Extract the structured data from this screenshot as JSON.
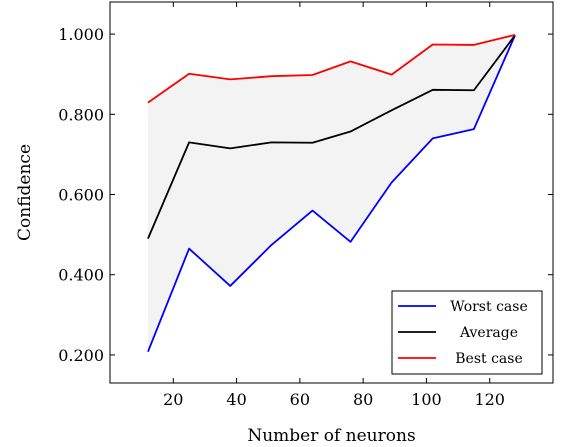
{
  "chart_data": {
    "type": "line",
    "xlabel": "Number of neurons",
    "ylabel": "Confidence",
    "xlim": [
      0,
      140
    ],
    "ylim": [
      0.13,
      1.08
    ],
    "x_ticks": [
      20,
      40,
      60,
      80,
      100,
      120
    ],
    "y_ticks": [
      0.2,
      0.4,
      0.6,
      0.8,
      1.0
    ],
    "y_tick_labels": [
      "0.200",
      "0.400",
      "0.600",
      "0.800",
      "1.000"
    ],
    "x_tick_labels": [
      "20",
      "40",
      "60",
      "80",
      "100",
      "120"
    ],
    "grid": false,
    "legend_position": "bottom-right",
    "shaded_band": {
      "between": [
        "Best case",
        "Worst case"
      ],
      "color": "#f3f3f3"
    },
    "x": [
      12,
      25,
      38,
      51,
      64,
      76,
      89,
      102,
      115,
      128
    ],
    "series": [
      {
        "name": "Worst case",
        "color": "#0000ff",
        "values": [
          0.208,
          0.465,
          0.372,
          0.474,
          0.56,
          0.482,
          0.63,
          0.74,
          0.763,
          0.997
        ]
      },
      {
        "name": "Average",
        "color": "#000000",
        "values": [
          0.49,
          0.73,
          0.715,
          0.73,
          0.729,
          0.757,
          0.81,
          0.861,
          0.86,
          0.997
        ]
      },
      {
        "name": "Best case",
        "color": "#ff0000",
        "values": [
          0.829,
          0.901,
          0.887,
          0.895,
          0.898,
          0.932,
          0.899,
          0.974,
          0.973,
          0.998
        ]
      }
    ]
  }
}
